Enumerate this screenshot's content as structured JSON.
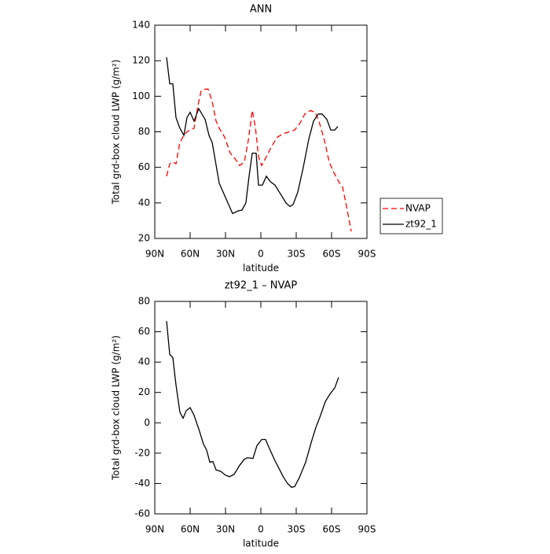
{
  "chart_data": [
    {
      "type": "line",
      "title": "ANN",
      "xlabel": "latitude",
      "ylabel": "Total grd-box cloud LWP (g/m²)",
      "xlim": [
        90,
        -90
      ],
      "xticks": [
        {
          "value": 90,
          "label": "90N"
        },
        {
          "value": 60,
          "label": "60N"
        },
        {
          "value": 30,
          "label": "30N"
        },
        0,
        {
          "value": -30,
          "label": "30S"
        },
        {
          "value": -60,
          "label": "60S"
        },
        {
          "value": -90,
          "label": "90S"
        }
      ],
      "ylim": [
        20,
        140
      ],
      "yticks": [
        20,
        40,
        60,
        80,
        100,
        120,
        140
      ],
      "legend": "right",
      "series": [
        {
          "name": "NVAP",
          "color": "#ff0000",
          "line_style": "dashed",
          "x": [
            80,
            77.3,
            74.7,
            72,
            68.7,
            65.3,
            62.7,
            60,
            56.7,
            53.3,
            50.7,
            47.3,
            44.7,
            41.3,
            38,
            35.3,
            30.7,
            26,
            22,
            18,
            14,
            10.7,
            7.3,
            4.7,
            2,
            -0.7,
            -4.7,
            -9.3,
            -14,
            -19.3,
            -24,
            -28.7,
            -33.3,
            -37.3,
            -42,
            -46,
            -49.3,
            -54,
            -58,
            -62,
            -66,
            -69.3,
            -72.7,
            -76.7
          ],
          "values": [
            55,
            62,
            63,
            62,
            74,
            78,
            80,
            81,
            82,
            95,
            103,
            104,
            104,
            97,
            86,
            82,
            77,
            68,
            65,
            61,
            63,
            75,
            92,
            83,
            66,
            61,
            66,
            72,
            77,
            79,
            80,
            81,
            85,
            90,
            92,
            91,
            86,
            75,
            63,
            57,
            52,
            49,
            38,
            24
          ]
        },
        {
          "name": "zt92_1",
          "color": "#000000",
          "line_style": "solid",
          "x": [
            80,
            77.3,
            74.7,
            72,
            68.7,
            65.3,
            62.7,
            60,
            56.7,
            52.7,
            47.3,
            44,
            41.3,
            35.3,
            29.3,
            24,
            19.3,
            16,
            12.7,
            10,
            7.3,
            4,
            2,
            -1.3,
            -4.7,
            -8,
            -12,
            -16.7,
            -21.3,
            -24.7,
            -27.3,
            -31.3,
            -36,
            -40.7,
            -44.7,
            -48.7,
            -52,
            -56,
            -59.3,
            -62.7,
            -65.3
          ],
          "values": [
            122,
            107,
            107,
            88,
            82,
            78,
            88,
            91,
            86,
            93,
            87,
            78,
            74,
            51,
            42,
            34,
            35.5,
            36,
            40,
            55,
            68,
            68,
            50,
            50,
            55,
            52,
            50,
            45,
            40,
            38,
            39,
            46,
            60,
            76,
            86,
            90,
            90,
            87,
            81,
            81,
            83
          ]
        }
      ]
    },
    {
      "type": "line",
      "title": "zt92_1 – NVAP",
      "xlabel": "latitude",
      "ylabel": "Total grd-box cloud LWP (g/m²)",
      "xlim": [
        90,
        -90
      ],
      "xticks": [
        {
          "value": 90,
          "label": "90N"
        },
        {
          "value": 60,
          "label": "60N"
        },
        {
          "value": 30,
          "label": "30N"
        },
        0,
        {
          "value": -30,
          "label": "30S"
        },
        {
          "value": -60,
          "label": "60S"
        },
        {
          "value": -90,
          "label": "90S"
        }
      ],
      "ylim": [
        -60,
        80
      ],
      "yticks": [
        -60,
        -40,
        -20,
        0,
        20,
        40,
        60,
        80
      ],
      "series": [
        {
          "color": "#000000",
          "line_style": "solid",
          "x": [
            80,
            77.3,
            74.7,
            72,
            68.7,
            66,
            63.3,
            60,
            56.7,
            52.7,
            48.7,
            46,
            43.3,
            40.7,
            38,
            34,
            30,
            26.7,
            22.7,
            18,
            14,
            11.3,
            6.7,
            3.3,
            -0.7,
            -4,
            -7.3,
            -12,
            -16,
            -19.3,
            -22.7,
            -26,
            -28.7,
            -32.7,
            -38,
            -42.7,
            -46.7,
            -50.7,
            -54.7,
            -58.7,
            -62.7,
            -66
          ],
          "values": [
            67,
            45,
            43,
            25,
            7,
            3,
            8,
            10,
            5,
            -4,
            -14,
            -18,
            -26,
            -25.5,
            -31,
            -32,
            -34.5,
            -35.5,
            -34,
            -28,
            -24,
            -23,
            -23.5,
            -15,
            -11,
            -11,
            -17,
            -25,
            -31,
            -36,
            -40,
            -42.5,
            -42,
            -36,
            -26,
            -13,
            -3,
            5,
            14,
            19,
            23,
            30
          ]
        }
      ]
    }
  ]
}
